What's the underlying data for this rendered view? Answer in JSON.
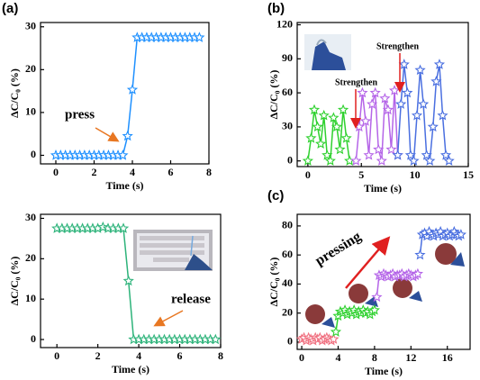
{
  "chart_data": [
    {
      "type": "line",
      "panel_label": "(a)",
      "xlabel": "Time (s)",
      "ylabel": "ΔC/C₀ (%)",
      "xlim": [
        -0.8,
        8
      ],
      "xticks": [
        0,
        2,
        4,
        6,
        8
      ],
      "ylim": [
        -2,
        31
      ],
      "yticks": [
        0,
        10,
        20,
        30
      ],
      "series": [
        {
          "color": "#1e90ff",
          "x": [
            0,
            0.25,
            0.5,
            0.75,
            1,
            1.25,
            1.5,
            1.75,
            2,
            2.25,
            2.5,
            2.75,
            3,
            3.25,
            3.5,
            3.75,
            4,
            4.25,
            4.5,
            4.75,
            5,
            5.25,
            5.5,
            5.75,
            6,
            6.25,
            6.5,
            6.75,
            7,
            7.25,
            7.5
          ],
          "values": [
            0,
            0,
            0,
            0,
            0,
            0,
            0,
            0,
            0,
            0,
            0,
            0,
            0,
            0,
            0,
            4.5,
            15.3,
            27.5,
            27.5,
            27.5,
            27.5,
            27.5,
            27.5,
            27.5,
            27.5,
            27.5,
            27.5,
            27.5,
            27.5,
            27.5,
            27.5
          ]
        }
      ],
      "annotations": [
        {
          "text": "press",
          "color": "#e87722"
        }
      ]
    },
    {
      "type": "line",
      "xlabel": "Time (s)",
      "ylabel": "ΔC/C₀ (%)",
      "xlim": [
        -0.8,
        8
      ],
      "xticks": [
        0,
        2,
        4,
        6,
        8
      ],
      "ylim": [
        -2,
        31
      ],
      "yticks": [
        0,
        10,
        20,
        30
      ],
      "series": [
        {
          "color": "#2db37a",
          "x": [
            0,
            0.25,
            0.5,
            0.75,
            1,
            1.25,
            1.5,
            1.75,
            2,
            2.25,
            2.5,
            2.75,
            3,
            3.25,
            3.5,
            3.75,
            4,
            4.25,
            4.5,
            4.75,
            5,
            5.25,
            5.5,
            5.75,
            6,
            6.25,
            6.5,
            6.75,
            7,
            7.25,
            7.5,
            7.75
          ],
          "values": [
            27.5,
            27.5,
            27.5,
            27.5,
            27.5,
            27.5,
            27.5,
            27.5,
            27.5,
            27.8,
            27.5,
            27.5,
            27.5,
            27.5,
            14.5,
            0,
            0,
            0,
            0,
            0,
            0,
            0,
            0,
            0,
            0,
            0,
            0,
            0,
            0,
            0,
            0,
            0
          ]
        }
      ],
      "annotations": [
        {
          "text": "release",
          "color": "#e87722"
        }
      ]
    },
    {
      "type": "line",
      "panel_label": "(b)",
      "xlabel": "Time (s)",
      "ylabel": "ΔC/C₀ (%)",
      "xlim": [
        -1,
        15
      ],
      "xticks": [
        0,
        5,
        10,
        15
      ],
      "ylim": [
        -5,
        122
      ],
      "yticks": [
        0,
        30,
        60,
        90,
        120
      ],
      "series": [
        {
          "color": "#2ed12e",
          "x": [
            0,
            0.3,
            0.6,
            0.9,
            1.2,
            1.5,
            1.8,
            2.1,
            2.4,
            2.7,
            3,
            3.3,
            3.6,
            3.9
          ],
          "values": [
            0,
            20,
            45,
            30,
            15,
            40,
            5,
            0,
            38,
            30,
            10,
            45,
            20,
            0
          ]
        },
        {
          "color": "#b565e8",
          "x": [
            4.5,
            4.8,
            5.1,
            5.4,
            5.7,
            6,
            6.3,
            6.6,
            6.9,
            7.2,
            7.5,
            7.8,
            8.1,
            8.4
          ],
          "values": [
            0,
            30,
            60,
            35,
            5,
            50,
            60,
            10,
            0,
            55,
            45,
            10,
            62,
            5
          ]
        },
        {
          "color": "#4a6fe0",
          "x": [
            8.4,
            8.7,
            9,
            9.3,
            9.6,
            9.9,
            10.2,
            10.5,
            10.8,
            11.1,
            11.4,
            11.7,
            12,
            12.3,
            12.6,
            12.9,
            13.2
          ],
          "values": [
            5,
            50,
            85,
            60,
            5,
            0,
            40,
            80,
            50,
            5,
            0,
            30,
            70,
            85,
            40,
            5,
            0
          ]
        }
      ],
      "annotations": [
        {
          "text": "Strengthen",
          "color": "#e02020"
        },
        {
          "text": "Strengthen",
          "color": "#e02020"
        }
      ]
    },
    {
      "type": "line",
      "panel_label": "(c)",
      "xlabel": "Time (s)",
      "ylabel": "ΔC/C₀ (%)",
      "xlim": [
        -0.5,
        18.5
      ],
      "xticks": [
        0,
        4,
        8,
        12,
        16
      ],
      "ylim": [
        -5,
        88
      ],
      "yticks": [
        0,
        20,
        40,
        60,
        80
      ],
      "series": [
        {
          "color": "#f07080",
          "x": [
            0,
            0.25,
            0.5,
            0.75,
            1,
            1.25,
            1.5,
            1.75,
            2,
            2.25,
            2.5,
            2.75,
            3,
            3.25,
            3.5
          ],
          "values": [
            2,
            3,
            1,
            3,
            2,
            1,
            3,
            2,
            3,
            1,
            2,
            3,
            2,
            1,
            2
          ]
        },
        {
          "color": "#2ed12e",
          "x": [
            3.75,
            4,
            4.25,
            4.5,
            4.75,
            5,
            5.25,
            5.5,
            5.75,
            6,
            6.25,
            6.5,
            6.75,
            7,
            7.25,
            7.5,
            7.75,
            8
          ],
          "values": [
            7,
            18,
            21,
            20,
            22,
            19,
            21,
            20,
            22,
            19,
            21,
            20,
            22,
            20,
            21,
            19,
            21,
            22
          ]
        },
        {
          "color": "#b565e8",
          "x": [
            8.25,
            8.5,
            8.75,
            9,
            9.25,
            9.5,
            9.75,
            10,
            10.25,
            10.5,
            10.75,
            11,
            11.25,
            11.5,
            11.75,
            12,
            12.25,
            12.5,
            12.75
          ],
          "values": [
            31,
            46,
            45,
            47,
            46,
            45,
            46,
            47,
            45,
            46,
            46,
            47,
            45,
            46,
            47,
            46,
            45,
            46,
            47
          ]
        },
        {
          "color": "#4a6fe0",
          "x": [
            13,
            13.25,
            13.5,
            13.75,
            14,
            14.25,
            14.5,
            14.75,
            15,
            15.25,
            15.5,
            15.75,
            16,
            16.25,
            16.5,
            16.75,
            17,
            17.25,
            17.5
          ],
          "values": [
            60,
            74,
            75,
            73,
            76,
            74,
            73,
            75,
            74,
            76,
            73,
            74,
            75,
            73,
            74,
            76,
            74,
            73,
            74
          ]
        }
      ],
      "annotations": [
        {
          "text": "pressing",
          "color": "#e02020"
        }
      ]
    }
  ]
}
